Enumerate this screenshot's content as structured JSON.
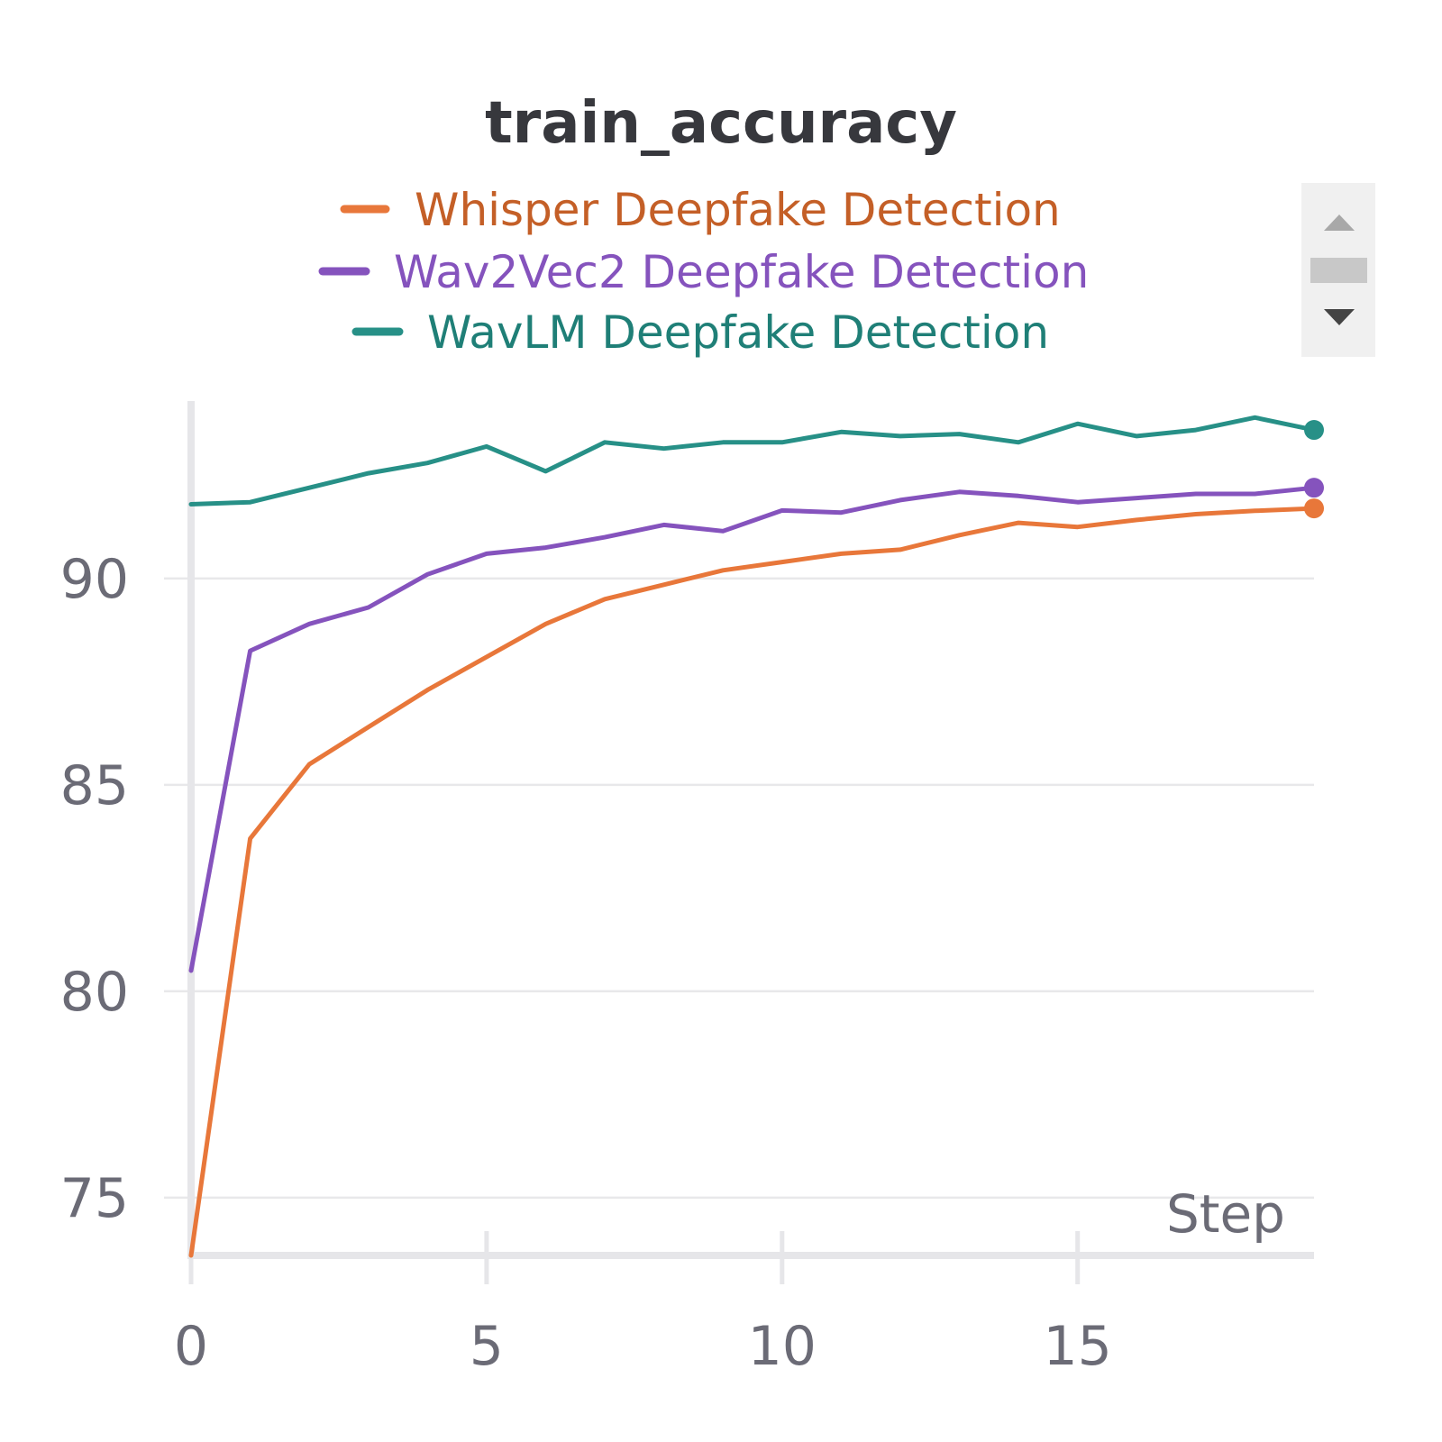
{
  "chart_data": {
    "type": "line",
    "title": "train_accuracy",
    "xlabel": "Step",
    "ylabel": "",
    "xlim": [
      0,
      19
    ],
    "ylim": [
      73.6,
      94.3
    ],
    "xticks": [
      0,
      5,
      10,
      15
    ],
    "yticks": [
      75,
      80,
      85,
      90
    ],
    "grid": true,
    "legend_position": "top-center",
    "x": [
      0,
      1,
      2,
      3,
      4,
      5,
      6,
      7,
      8,
      9,
      10,
      11,
      12,
      13,
      14,
      15,
      16,
      17,
      18,
      19
    ],
    "series": [
      {
        "name": "Whisper Deepfake Detection",
        "color": "#e8773a",
        "legend_text_color": "#c45f27",
        "values": [
          73.6,
          83.7,
          85.5,
          86.4,
          87.3,
          88.1,
          88.9,
          89.5,
          89.85,
          90.2,
          90.4,
          90.6,
          90.7,
          91.05,
          91.35,
          91.25,
          91.42,
          91.56,
          91.64,
          91.7
        ]
      },
      {
        "name": "Wav2Vec2 Deepfake Detection",
        "color": "#8553bd",
        "legend_text_color": "#8553bd",
        "values": [
          80.5,
          88.25,
          88.9,
          89.3,
          90.1,
          90.6,
          90.75,
          91.0,
          91.3,
          91.15,
          91.65,
          91.6,
          91.9,
          92.1,
          92.0,
          91.85,
          91.95,
          92.05,
          92.05,
          92.2
        ]
      },
      {
        "name": "WavLM Deepfake Detection",
        "color": "#279087",
        "legend_text_color": "#1f7f77",
        "values": [
          91.8,
          91.85,
          92.2,
          92.55,
          92.8,
          93.2,
          92.6,
          93.3,
          93.15,
          93.3,
          93.3,
          93.55,
          93.45,
          93.5,
          93.3,
          93.75,
          93.45,
          93.6,
          93.9,
          93.6
        ]
      }
    ]
  }
}
